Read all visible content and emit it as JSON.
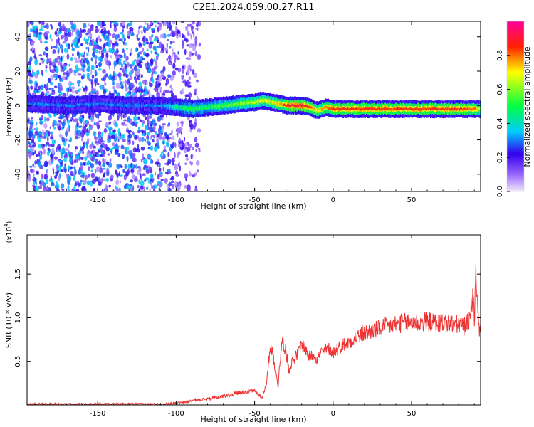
{
  "title": "C2E1.2024.059.00.27.R11",
  "chart_data": [
    {
      "type": "heatmap",
      "xlabel": "Height of straight line (km)",
      "ylabel": "Frequency (Hz)",
      "xlim": [
        -195,
        94
      ],
      "ylim": [
        -50,
        49
      ],
      "xticks": [
        -150,
        -100,
        -50,
        0,
        50
      ],
      "yticks": [
        -40,
        -20,
        0,
        20,
        40
      ],
      "grid": false,
      "colorbar": {
        "label": "Normalized spectral amplitude",
        "range": [
          0.0,
          1.0
        ],
        "ticks": [
          "0.0",
          "0.2",
          "0.4",
          "0.6",
          "0.8"
        ],
        "colormap": "rainbow",
        "colors": [
          "#f2e8fb",
          "#9966ff",
          "#3300ee",
          "#00ccff",
          "#00ff44",
          "#ffff00",
          "#ff2200",
          "#ff0099"
        ]
      },
      "ridge": {
        "x": [
          -195,
          -170,
          -150,
          -130,
          -110,
          -100,
          -90,
          -80,
          -70,
          -60,
          -50,
          -45,
          -40,
          -35,
          -30,
          -25,
          -20,
          -15,
          -10,
          -5,
          0,
          10,
          20,
          30,
          40,
          50,
          60,
          70,
          80,
          90,
          94
        ],
        "frequency": [
          1,
          0,
          1,
          0,
          0,
          -1,
          -2,
          -1,
          0,
          1,
          2,
          3,
          2,
          1,
          0,
          0,
          0,
          -1,
          -3,
          -1,
          -2,
          -2,
          -2,
          -2,
          -2,
          -2,
          -2,
          -2,
          -2,
          -2,
          -2
        ],
        "amplitude": [
          0.3,
          0.3,
          0.3,
          0.3,
          0.3,
          0.45,
          0.5,
          0.5,
          0.55,
          0.6,
          0.65,
          0.7,
          0.7,
          0.75,
          0.85,
          0.9,
          0.9,
          0.85,
          0.7,
          0.8,
          0.85,
          0.85,
          0.85,
          0.85,
          0.85,
          0.85,
          0.85,
          0.85,
          0.85,
          0.8,
          0.6
        ]
      },
      "noise_region_x": [
        -195,
        -90
      ]
    },
    {
      "type": "line",
      "xlabel": "Height of straight line (km)",
      "ylabel": "SNR (10 * v/v)",
      "y_multiplier": "(x10",
      "y_multiplier_exp": "4",
      "y_multiplier_close": ")",
      "xlim": [
        -195,
        94
      ],
      "ylim": [
        0,
        1.95
      ],
      "xticks": [
        -150,
        -100,
        -50,
        0,
        50
      ],
      "yticks": [
        0.5,
        1.0,
        1.5
      ],
      "ytick_labels": [
        "0.5",
        "1.0",
        "1.5"
      ],
      "grid": false,
      "color": "#ee3333",
      "series": [
        {
          "x": [
            -195,
            -180,
            -160,
            -140,
            -120,
            -110,
            -100,
            -95,
            -90,
            -85,
            -80,
            -75,
            -70,
            -65,
            -60,
            -55,
            -50,
            -45,
            -42,
            -40,
            -38,
            -36,
            -35,
            -34,
            -32,
            -30,
            -28,
            -26,
            -24,
            -22,
            -20,
            -18,
            -15,
            -12,
            -10,
            -8,
            -5,
            -2,
            0,
            5,
            10,
            15,
            20,
            25,
            30,
            35,
            40,
            45,
            50,
            55,
            60,
            65,
            70,
            75,
            80,
            84,
            86,
            88,
            89,
            90,
            91,
            92,
            93,
            94
          ],
          "values": [
            0.01,
            0.01,
            0.01,
            0.01,
            0.01,
            0.01,
            0.02,
            0.03,
            0.05,
            0.06,
            0.07,
            0.08,
            0.1,
            0.12,
            0.14,
            0.15,
            0.16,
            0.08,
            0.3,
            0.7,
            0.55,
            0.3,
            0.22,
            0.5,
            0.75,
            0.6,
            0.4,
            0.5,
            0.55,
            0.6,
            0.7,
            0.65,
            0.55,
            0.58,
            0.52,
            0.6,
            0.62,
            0.65,
            0.6,
            0.68,
            0.72,
            0.78,
            0.82,
            0.85,
            0.88,
            0.9,
            0.93,
            0.94,
            0.95,
            0.94,
            0.96,
            0.94,
            0.95,
            0.93,
            0.92,
            0.9,
            0.95,
            1.1,
            1.3,
            1.0,
            1.45,
            1.25,
            0.85,
            0.9
          ]
        }
      ]
    }
  ]
}
